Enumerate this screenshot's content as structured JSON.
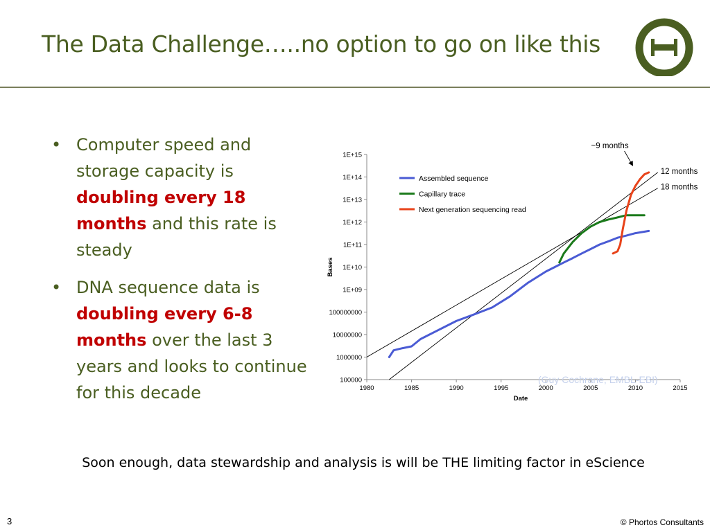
{
  "slide": {
    "title": "The Data Challenge…..no option to go on like this",
    "conclusion": "Soon enough, data stewardship and analysis is will be THE limiting factor in eScience",
    "page_number": "3",
    "copyright": "© Phortos Consultants",
    "watermark": "(Guy Cochrane, EMBL-EBI)",
    "colors": {
      "title": "#4a5e21",
      "emphasis": "#c00000",
      "rule": "#7a7f5b",
      "logo": "#4a5e21"
    },
    "logo_icon": "theta-logo-icon"
  },
  "bullets": [
    {
      "pre": "Computer speed and storage capacity is ",
      "emph": "doubling every 18 months",
      "post": " and this rate is steady"
    },
    {
      "pre": "DNA sequence data is ",
      "emph": "doubling every 6-8 months",
      "post": " over the last 3 years and looks to continue for this decade"
    }
  ],
  "chart_data": {
    "type": "line",
    "title": "",
    "xlabel": "Date",
    "ylabel": "Bases",
    "xlim": [
      1980,
      2015
    ],
    "ylim_log10": [
      5,
      15
    ],
    "y_scale": "log",
    "grid": false,
    "legend_position": "top-left",
    "x_ticks": [
      "1980",
      "1985",
      "1990",
      "1995",
      "2000",
      "2005",
      "2010",
      "2015"
    ],
    "y_ticks": [
      "100000",
      "1000000",
      "10000000",
      "100000000",
      "1E+09",
      "1E+10",
      "1E+11",
      "1E+12",
      "1E+13",
      "1E+14",
      "1E+15"
    ],
    "series": [
      {
        "name": "Assembled sequence",
        "color": "#4a5bd4",
        "points": [
          [
            1982.5,
            1000000.0
          ],
          [
            1983,
            2000000.0
          ],
          [
            1984,
            2500000.0
          ],
          [
            1985,
            3000000.0
          ],
          [
            1986,
            6300000.0
          ],
          [
            1988,
            16000000.0
          ],
          [
            1990,
            40000000.0
          ],
          [
            1992,
            79000000.0
          ],
          [
            1994,
            160000000.0
          ],
          [
            1996,
            500000000.0
          ],
          [
            1998,
            2000000000.0
          ],
          [
            2000,
            6300000000.0
          ],
          [
            2001,
            10000000000.0
          ],
          [
            2002,
            16000000000.0
          ],
          [
            2003,
            25000000000.0
          ],
          [
            2004,
            40000000000.0
          ],
          [
            2005,
            63000000000.0
          ],
          [
            2006,
            100000000000.0
          ],
          [
            2007,
            140000000000.0
          ],
          [
            2008,
            200000000000.0
          ],
          [
            2009,
            250000000000.0
          ],
          [
            2010,
            320000000000.0
          ],
          [
            2011.5,
            400000000000.0
          ]
        ]
      },
      {
        "name": "Capillary trace",
        "color": "#1b7a1b",
        "points": [
          [
            2001.5,
            16000000000.0
          ],
          [
            2002,
            40000000000.0
          ],
          [
            2003,
            130000000000.0
          ],
          [
            2004,
            320000000000.0
          ],
          [
            2005,
            630000000000.0
          ],
          [
            2006,
            1000000000000.0
          ],
          [
            2007,
            1300000000000.0
          ],
          [
            2008,
            1600000000000.0
          ],
          [
            2009,
            2000000000000.0
          ],
          [
            2010,
            2000000000000.0
          ],
          [
            2011,
            2000000000000.0
          ]
        ]
      },
      {
        "name": "Next generation sequencing read",
        "color": "#e8431a",
        "points": [
          [
            2007.5,
            40000000000.0
          ],
          [
            2008,
            50000000000.0
          ],
          [
            2008.3,
            100000000000.0
          ],
          [
            2008.6,
            500000000000.0
          ],
          [
            2009,
            3200000000000.0
          ],
          [
            2009.5,
            16000000000000.0
          ],
          [
            2010,
            40000000000000.0
          ],
          [
            2010.5,
            79000000000000.0
          ],
          [
            2011,
            130000000000000.0
          ],
          [
            2011.5,
            160000000000000.0
          ]
        ]
      }
    ],
    "trend_lines": [
      {
        "label": "12 months",
        "from": [
          1982.5,
          100000.0
        ],
        "to": [
          2012.5,
          160000000000000.0
        ]
      },
      {
        "label": "18 months",
        "from": [
          1980,
          1000000.0
        ],
        "to": [
          2012.5,
          32000000000000.0
        ]
      }
    ],
    "annotations": [
      {
        "text": "~9 months",
        "arrow_to": [
          2009.7,
          320000000000000.0
        ]
      }
    ]
  }
}
